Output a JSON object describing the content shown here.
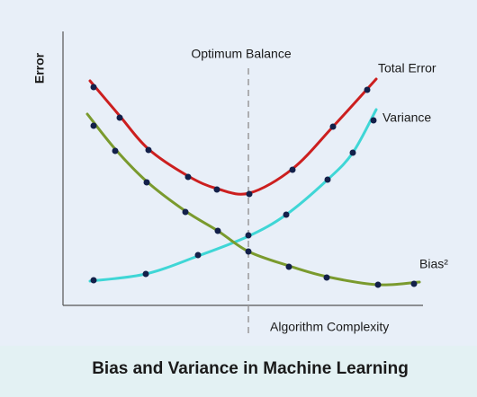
{
  "diagram": {
    "y_axis_label": "Error",
    "x_axis_label": "Algorithm Complexity",
    "optimum_label": "Optimum Balance",
    "curves": [
      {
        "label": "Total Error"
      },
      {
        "label": "Variance"
      },
      {
        "label": "Bias²"
      }
    ]
  },
  "footer": {
    "title": "Bias and Variance in Machine Learning"
  }
}
